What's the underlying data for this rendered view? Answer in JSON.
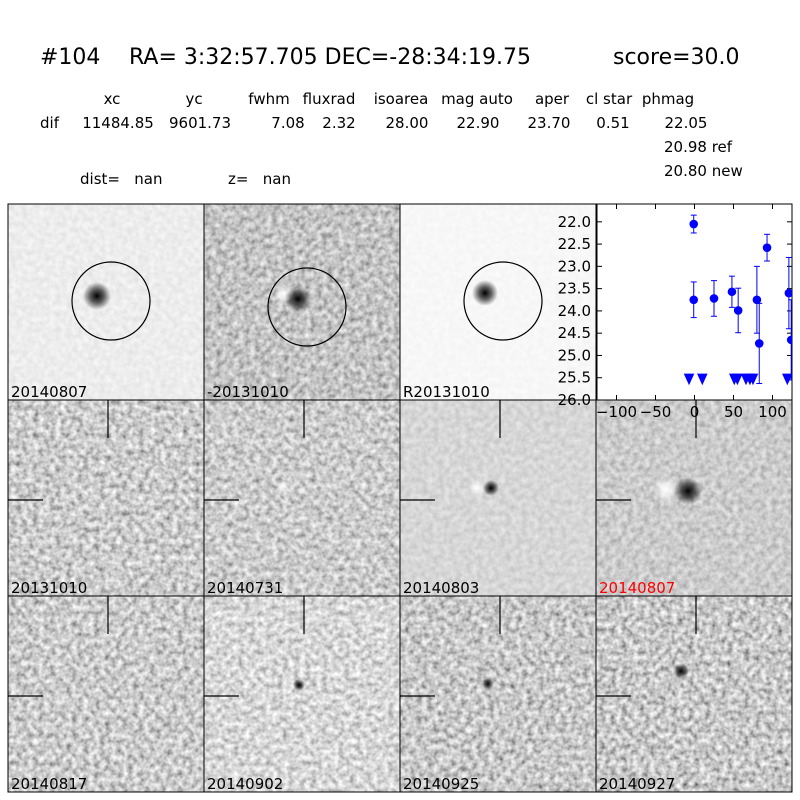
{
  "header": {
    "id": "#104",
    "coords": "RA= 3:32:57.705 DEC=-28:34:19.75",
    "score": "score=30.0"
  },
  "table": {
    "columns": [
      "xc",
      "yc",
      "fwhm",
      "fluxrad",
      "isoarea",
      "mag auto",
      "aper",
      "cl star",
      "phmag"
    ],
    "row_label": "dif",
    "row": [
      "11484.85",
      "9601.73",
      "7.08",
      "2.32",
      "28.00",
      "22.90",
      "23.70",
      "0.51",
      "22.05"
    ],
    "phmag_extra": [
      "20.98 ref",
      "20.80 new"
    ]
  },
  "dist": "dist=   nan",
  "z": "z=   nan",
  "panels": [
    {
      "label": "20140807",
      "color": "#000000"
    },
    {
      "label": "-20131010",
      "color": "#000000"
    },
    {
      "label": "R20131010",
      "color": "#000000"
    },
    {
      "label": "20131010",
      "color": "#000000"
    },
    {
      "label": "20140731",
      "color": "#000000"
    },
    {
      "label": "20140803",
      "color": "#000000"
    },
    {
      "label": "20140807",
      "color": "#ff0000"
    },
    {
      "label": "20140817",
      "color": "#000000"
    },
    {
      "label": "20140902",
      "color": "#000000"
    },
    {
      "label": "20140925",
      "color": "#000000"
    },
    {
      "label": "20140927",
      "color": "#000000"
    }
  ],
  "chart_data": {
    "type": "scatter",
    "invert_y": true,
    "xlim": [
      -125,
      125
    ],
    "xticks": [
      {
        "value": -100,
        "label": "−100"
      },
      {
        "value": -50,
        "label": "−50"
      },
      0,
      50,
      100
    ],
    "ylim": [
      21.6,
      26.0
    ],
    "yticks": [
      {
        "value": 22,
        "label": "22.0"
      },
      22.5,
      {
        "value": 23,
        "label": "23.0"
      },
      23.5,
      {
        "value": 24,
        "label": "24.0"
      },
      24.5,
      {
        "value": 25,
        "label": "25.0"
      },
      25.5,
      {
        "value": 26,
        "label": "26.0"
      }
    ],
    "series": [
      {
        "marker": "circle",
        "color": "#0000ff",
        "x": [
          -1,
          -1,
          25,
          48,
          56,
          80,
          83,
          93,
          121,
          124
        ],
        "values": [
          23.75,
          22.05,
          23.72,
          23.57,
          23.99,
          23.75,
          24.73,
          22.58,
          23.6,
          24.65
        ],
        "errors": [
          0.4,
          0.2,
          0.4,
          0.35,
          0.5,
          0.75,
          0.9,
          0.3,
          0.8,
          0.9
        ]
      },
      {
        "marker": "triangle-down",
        "color": "#0000ff",
        "x": [
          -7,
          10,
          51,
          55,
          66,
          71,
          75,
          119
        ],
        "values": [
          25.53,
          25.53,
          25.53,
          25.53,
          25.53,
          25.53,
          25.53,
          25.53
        ]
      }
    ]
  }
}
